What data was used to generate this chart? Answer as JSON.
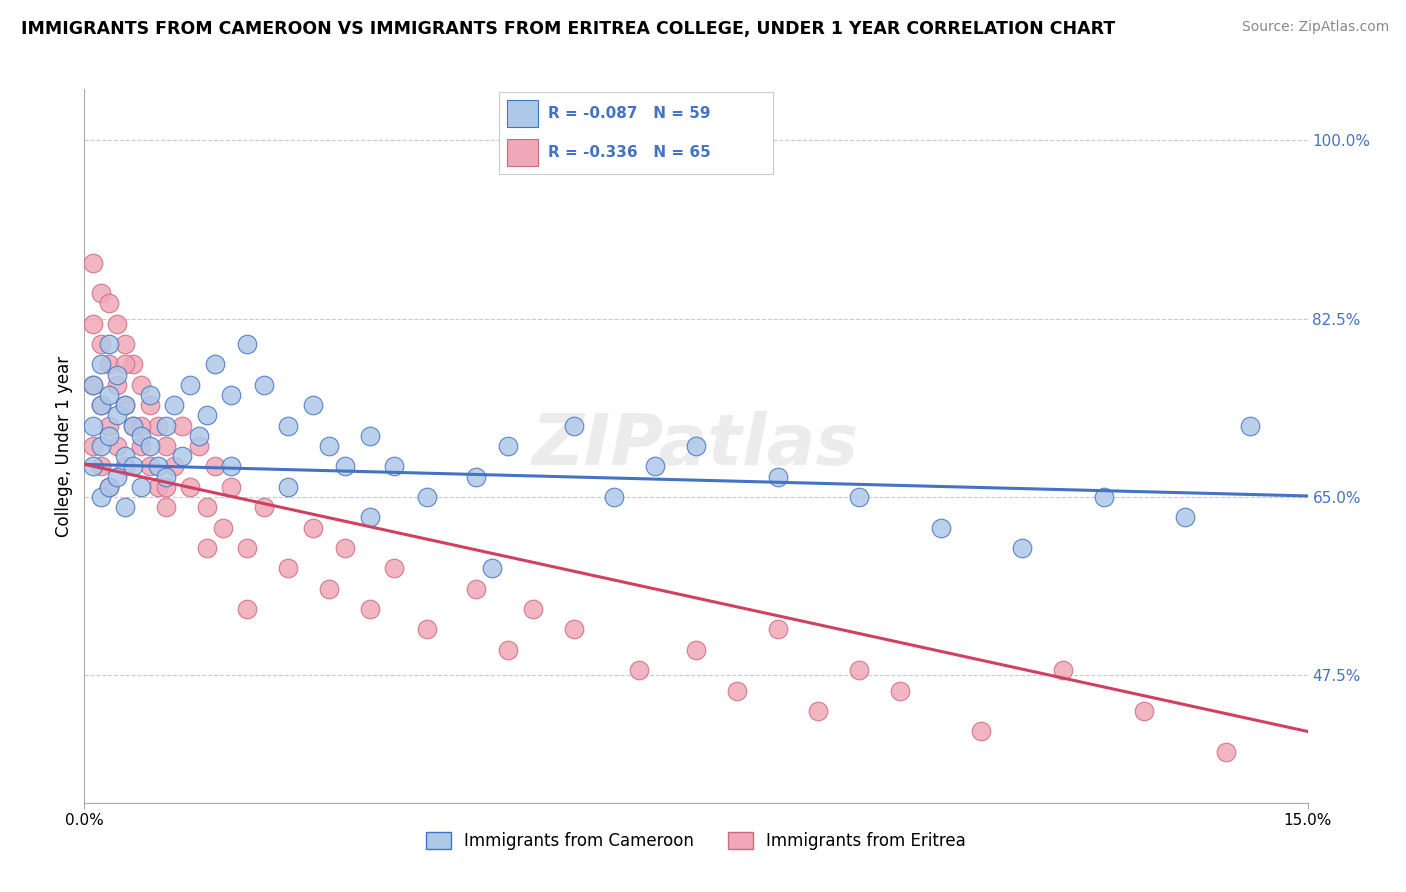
{
  "title": "IMMIGRANTS FROM CAMEROON VS IMMIGRANTS FROM ERITREA COLLEGE, UNDER 1 YEAR CORRELATION CHART",
  "source": "Source: ZipAtlas.com",
  "ylabel": "College, Under 1 year",
  "xmin": 0.0,
  "xmax": 0.15,
  "ymin": 0.35,
  "ymax": 1.05,
  "yticks": [
    0.475,
    0.65,
    0.825,
    1.0
  ],
  "ytick_labels": [
    "47.5%",
    "65.0%",
    "82.5%",
    "100.0%"
  ],
  "xtick_labels": [
    "0.0%",
    "15.0%"
  ],
  "legend_r1": "R = -0.087",
  "legend_n1": "N = 59",
  "legend_r2": "R = -0.336",
  "legend_n2": "N = 65",
  "color_cameroon_fill": "#aec8e8",
  "color_cameroon_edge": "#4472c4",
  "color_eritrea_fill": "#f0a8b8",
  "color_eritrea_edge": "#d06880",
  "line_color_cameroon": "#4472c4",
  "line_color_eritrea": "#d04060",
  "grid_color": "#c8c8d8",
  "text_color_axis": "#4472c4",
  "watermark": "ZIPatlas",
  "legend_label_cameroon": "Immigrants from Cameroon",
  "legend_label_eritrea": "Immigrants from Eritrea",
  "cam_x": [
    0.001,
    0.001,
    0.001,
    0.002,
    0.002,
    0.002,
    0.002,
    0.003,
    0.003,
    0.003,
    0.003,
    0.004,
    0.004,
    0.004,
    0.005,
    0.005,
    0.005,
    0.006,
    0.006,
    0.007,
    0.007,
    0.008,
    0.008,
    0.009,
    0.01,
    0.01,
    0.011,
    0.012,
    0.013,
    0.014,
    0.015,
    0.016,
    0.018,
    0.02,
    0.022,
    0.025,
    0.028,
    0.03,
    0.032,
    0.035,
    0.038,
    0.042,
    0.048,
    0.052,
    0.06,
    0.065,
    0.07,
    0.075,
    0.085,
    0.095,
    0.105,
    0.115,
    0.125,
    0.135,
    0.143,
    0.018,
    0.025,
    0.035,
    0.05
  ],
  "cam_y": [
    0.68,
    0.72,
    0.76,
    0.65,
    0.7,
    0.74,
    0.78,
    0.66,
    0.71,
    0.75,
    0.8,
    0.67,
    0.73,
    0.77,
    0.64,
    0.69,
    0.74,
    0.68,
    0.72,
    0.66,
    0.71,
    0.7,
    0.75,
    0.68,
    0.72,
    0.67,
    0.74,
    0.69,
    0.76,
    0.71,
    0.73,
    0.78,
    0.75,
    0.8,
    0.76,
    0.72,
    0.74,
    0.7,
    0.68,
    0.71,
    0.68,
    0.65,
    0.67,
    0.7,
    0.72,
    0.65,
    0.68,
    0.7,
    0.67,
    0.65,
    0.62,
    0.6,
    0.65,
    0.63,
    0.72,
    0.68,
    0.66,
    0.63,
    0.58
  ],
  "eri_x": [
    0.001,
    0.001,
    0.001,
    0.001,
    0.002,
    0.002,
    0.002,
    0.002,
    0.003,
    0.003,
    0.003,
    0.003,
    0.004,
    0.004,
    0.004,
    0.005,
    0.005,
    0.005,
    0.006,
    0.006,
    0.007,
    0.007,
    0.008,
    0.008,
    0.009,
    0.009,
    0.01,
    0.01,
    0.011,
    0.012,
    0.013,
    0.014,
    0.015,
    0.016,
    0.017,
    0.018,
    0.02,
    0.022,
    0.025,
    0.028,
    0.03,
    0.032,
    0.035,
    0.038,
    0.042,
    0.048,
    0.052,
    0.055,
    0.06,
    0.068,
    0.075,
    0.08,
    0.085,
    0.09,
    0.095,
    0.1,
    0.11,
    0.12,
    0.13,
    0.14,
    0.005,
    0.007,
    0.01,
    0.015,
    0.02
  ],
  "eri_y": [
    0.88,
    0.82,
    0.76,
    0.7,
    0.85,
    0.8,
    0.74,
    0.68,
    0.84,
    0.78,
    0.72,
    0.66,
    0.82,
    0.76,
    0.7,
    0.8,
    0.74,
    0.68,
    0.78,
    0.72,
    0.76,
    0.7,
    0.74,
    0.68,
    0.72,
    0.66,
    0.7,
    0.64,
    0.68,
    0.72,
    0.66,
    0.7,
    0.64,
    0.68,
    0.62,
    0.66,
    0.6,
    0.64,
    0.58,
    0.62,
    0.56,
    0.6,
    0.54,
    0.58,
    0.52,
    0.56,
    0.5,
    0.54,
    0.52,
    0.48,
    0.5,
    0.46,
    0.52,
    0.44,
    0.48,
    0.46,
    0.42,
    0.48,
    0.44,
    0.4,
    0.78,
    0.72,
    0.66,
    0.6,
    0.54
  ]
}
